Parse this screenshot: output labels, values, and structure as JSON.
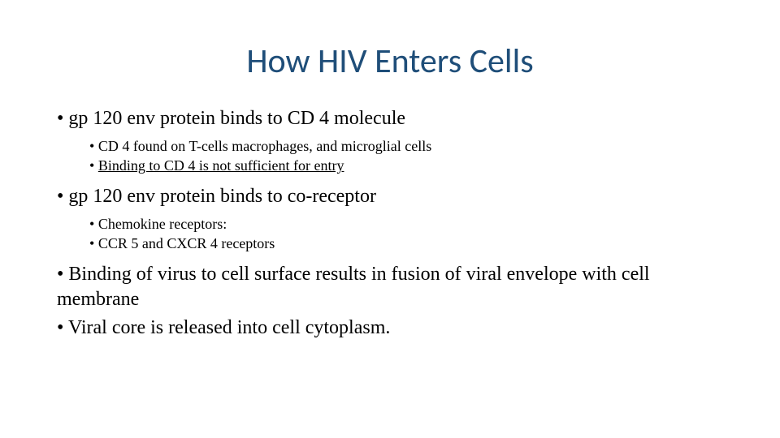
{
  "title": {
    "text": "How HIV Enters Cells",
    "color": "#1f4e79",
    "fontsize": 42
  },
  "bullets": [
    {
      "text": "gp 120 env protein binds to CD 4 molecule",
      "sub": [
        {
          "text": "CD 4 found on T-cells macrophages, and microglial cells",
          "underline": false
        },
        {
          "text": "Binding to CD 4 is not sufficient for entry",
          "underline": true
        }
      ]
    },
    {
      "text": "gp 120 env protein binds to co-receptor",
      "sub": [
        {
          "text": "Chemokine receptors:",
          "underline": false
        },
        {
          "text": "CCR 5 and CXCR 4 receptors",
          "underline": false
        }
      ]
    },
    {
      "text": "Binding of virus to cell surface results in fusion of viral envelope with cell membrane",
      "sub": []
    },
    {
      "text": "Viral core is released into cell cytoplasm.",
      "sub": []
    }
  ],
  "colors": {
    "title": "#1f4e79",
    "body": "#000000",
    "background": "#ffffff"
  },
  "fontsizes": {
    "title": 42,
    "level1": 24,
    "level2": 18
  }
}
